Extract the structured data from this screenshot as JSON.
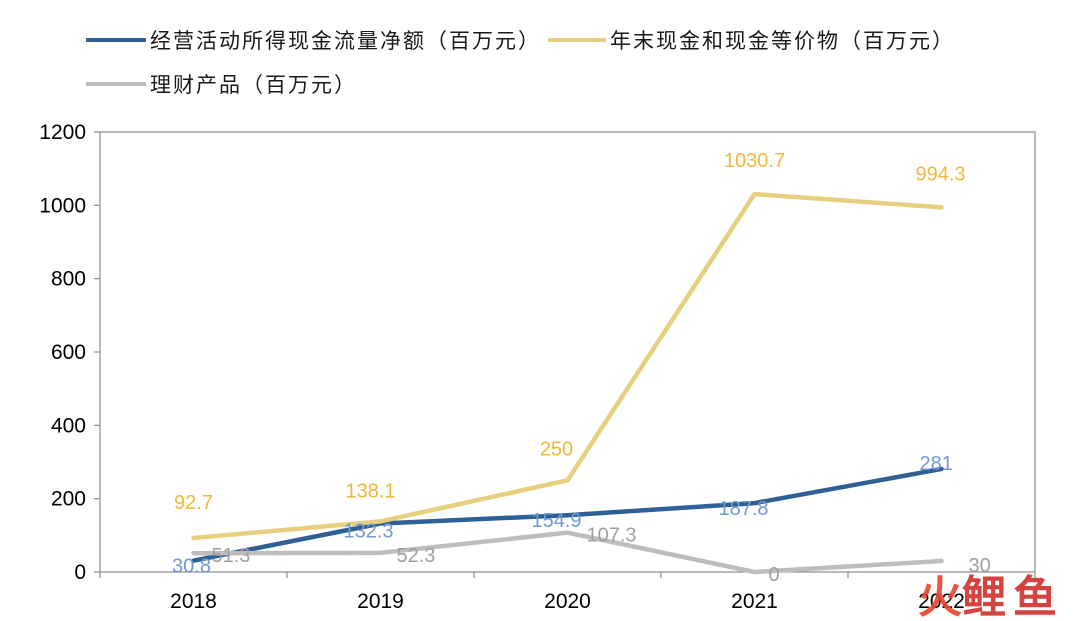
{
  "chart_data": {
    "type": "line",
    "categories": [
      "2018",
      "2019",
      "2020",
      "2021",
      "2022"
    ],
    "ylim": [
      0,
      1200
    ],
    "yticks": [
      0,
      200,
      400,
      600,
      800,
      1000,
      1200
    ],
    "grid": false,
    "legend_position": "top",
    "series": [
      {
        "name": "经营活动所得现金流量净额（百万元）",
        "color": "#2e5f95",
        "label_color": "#6f9bd0",
        "values": [
          30.8,
          132.3,
          154.9,
          187.8,
          281
        ]
      },
      {
        "name": "年末现金和现金等价物（百万元）",
        "color": "#e6cf7e",
        "label_color": "#f0b73a",
        "values": [
          92.7,
          138.1,
          250,
          1030.7,
          994.3
        ]
      },
      {
        "name": "理财产品（百万元）",
        "color": "#bdbdbd",
        "label_color": "#a0a0a0",
        "values": [
          51.3,
          52.3,
          107.3,
          0,
          30
        ]
      }
    ]
  },
  "watermark": {
    "text": "火鲤鱼",
    "colors": [
      "#e8412c",
      "#cf2f2a",
      "#cf2f2a"
    ]
  }
}
